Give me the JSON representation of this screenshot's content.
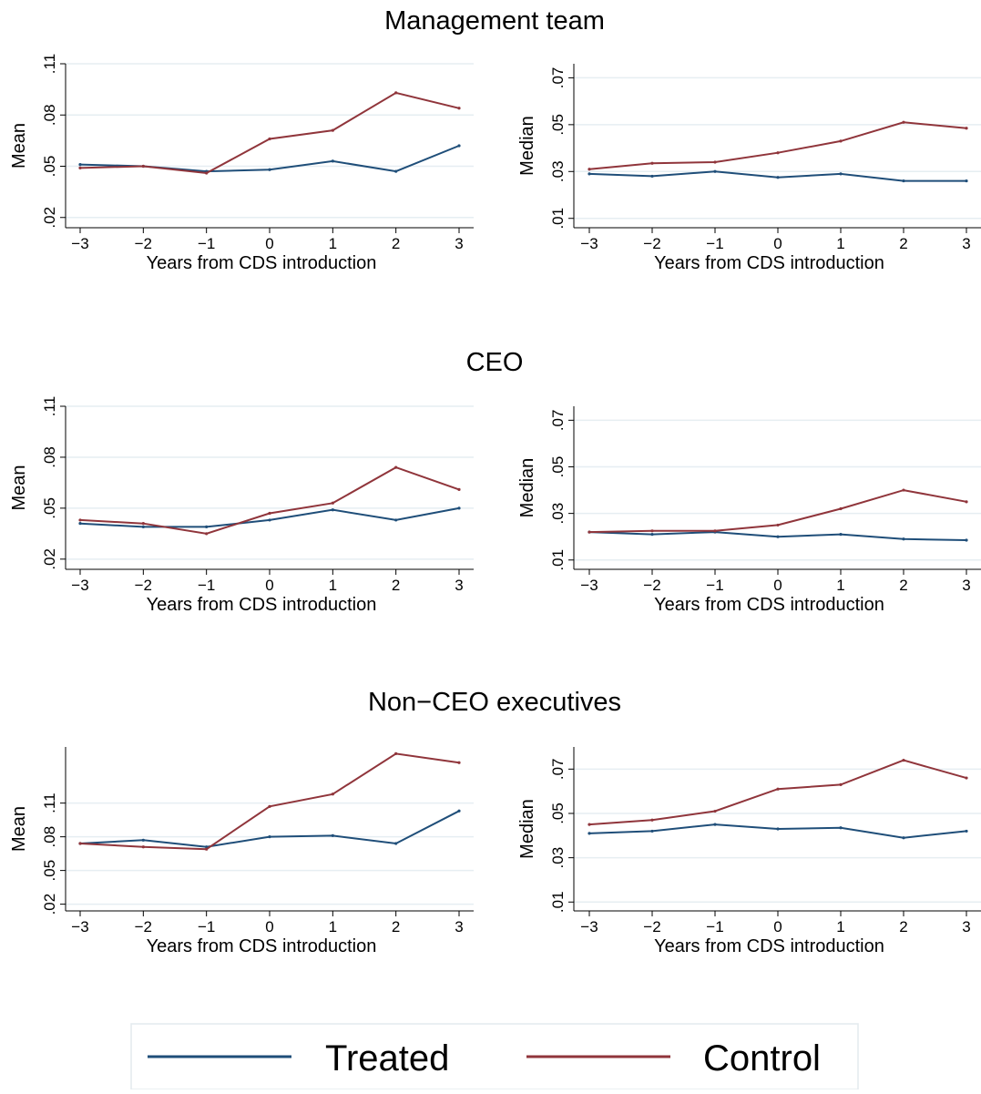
{
  "colors": {
    "treated": "#1f4e79",
    "control": "#90353b"
  },
  "legend": {
    "placement": "bottom-center",
    "items": [
      {
        "label": "Treated",
        "color": "#1f4e79"
      },
      {
        "label": "Control",
        "color": "#90353b"
      }
    ]
  },
  "sections": [
    {
      "title": "Management team"
    },
    {
      "title": "CEO"
    },
    {
      "title": "Non−CEO executives"
    }
  ],
  "chart_data": [
    {
      "type": "line",
      "section": "Management team",
      "xlabel": "Years from CDS introduction",
      "ylabel": "Mean",
      "x": [
        -3,
        -2,
        -1,
        0,
        1,
        2,
        3
      ],
      "xticks": [
        -3,
        -2,
        -1,
        0,
        1,
        2,
        3
      ],
      "xtick_labels": [
        "−3",
        "−2",
        "−1",
        "0",
        "1",
        "2",
        "3"
      ],
      "ylim": [
        0.014,
        0.11
      ],
      "yticks": [
        0.02,
        0.05,
        0.08,
        0.11
      ],
      "ytick_labels": [
        ".02",
        ".05",
        ".08",
        ".11"
      ],
      "grid": true,
      "series": [
        {
          "name": "Treated",
          "values": [
            0.051,
            0.05,
            0.047,
            0.048,
            0.053,
            0.047,
            0.062
          ]
        },
        {
          "name": "Control",
          "values": [
            0.049,
            0.05,
            0.046,
            0.066,
            0.071,
            0.093,
            0.084
          ]
        }
      ]
    },
    {
      "type": "line",
      "section": "Management team",
      "xlabel": "Years from CDS introduction",
      "ylabel": "Median",
      "x": [
        -3,
        -2,
        -1,
        0,
        1,
        2,
        3
      ],
      "xticks": [
        -3,
        -2,
        -1,
        0,
        1,
        2,
        3
      ],
      "xtick_labels": [
        "−3",
        "−2",
        "−1",
        "0",
        "1",
        "2",
        "3"
      ],
      "ylim": [
        0.006,
        0.076
      ],
      "yticks": [
        0.01,
        0.03,
        0.05,
        0.07
      ],
      "ytick_labels": [
        ".01",
        ".03",
        ".05",
        ".07"
      ],
      "grid": true,
      "series": [
        {
          "name": "Treated",
          "values": [
            0.029,
            0.028,
            0.03,
            0.0275,
            0.029,
            0.026,
            0.026
          ]
        },
        {
          "name": "Control",
          "values": [
            0.031,
            0.0335,
            0.034,
            0.038,
            0.043,
            0.051,
            0.0485
          ]
        }
      ]
    },
    {
      "type": "line",
      "section": "CEO",
      "xlabel": "Years from CDS introduction",
      "ylabel": "Mean",
      "x": [
        -3,
        -2,
        -1,
        0,
        1,
        2,
        3
      ],
      "xticks": [
        -3,
        -2,
        -1,
        0,
        1,
        2,
        3
      ],
      "xtick_labels": [
        "−3",
        "−2",
        "−1",
        "0",
        "1",
        "2",
        "3"
      ],
      "ylim": [
        0.014,
        0.11
      ],
      "yticks": [
        0.02,
        0.05,
        0.08,
        0.11
      ],
      "ytick_labels": [
        ".02",
        ".05",
        ".08",
        ".11"
      ],
      "grid": true,
      "series": [
        {
          "name": "Treated",
          "values": [
            0.041,
            0.039,
            0.039,
            0.043,
            0.049,
            0.043,
            0.05
          ]
        },
        {
          "name": "Control",
          "values": [
            0.043,
            0.041,
            0.035,
            0.047,
            0.053,
            0.074,
            0.061
          ]
        }
      ]
    },
    {
      "type": "line",
      "section": "CEO",
      "xlabel": "Years from CDS introduction",
      "ylabel": "Median",
      "x": [
        -3,
        -2,
        -1,
        0,
        1,
        2,
        3
      ],
      "xticks": [
        -3,
        -2,
        -1,
        0,
        1,
        2,
        3
      ],
      "xtick_labels": [
        "−3",
        "−2",
        "−1",
        "0",
        "1",
        "2",
        "3"
      ],
      "ylim": [
        0.006,
        0.076
      ],
      "yticks": [
        0.01,
        0.03,
        0.05,
        0.07
      ],
      "ytick_labels": [
        ".01",
        ".03",
        ".05",
        ".07"
      ],
      "grid": true,
      "series": [
        {
          "name": "Treated",
          "values": [
            0.022,
            0.021,
            0.022,
            0.02,
            0.021,
            0.019,
            0.0185
          ]
        },
        {
          "name": "Control",
          "values": [
            0.022,
            0.0225,
            0.0225,
            0.025,
            0.032,
            0.04,
            0.035
          ]
        }
      ]
    },
    {
      "type": "line",
      "section": "Non−CEO executives",
      "xlabel": "Years from CDS introduction",
      "ylabel": "Mean",
      "x": [
        -3,
        -2,
        -1,
        0,
        1,
        2,
        3
      ],
      "xticks": [
        -3,
        -2,
        -1,
        0,
        1,
        2,
        3
      ],
      "xtick_labels": [
        "−3",
        "−2",
        "−1",
        "0",
        "1",
        "2",
        "3"
      ],
      "ylim": [
        0.014,
        0.16
      ],
      "yticks": [
        0.02,
        0.05,
        0.08,
        0.11
      ],
      "ytick_labels": [
        ".02",
        ".05",
        ".08",
        ".11"
      ],
      "grid": true,
      "series": [
        {
          "name": "Treated",
          "values": [
            0.074,
            0.077,
            0.071,
            0.08,
            0.081,
            0.074,
            0.103
          ]
        },
        {
          "name": "Control",
          "values": [
            0.074,
            0.071,
            0.069,
            0.107,
            0.118,
            0.154,
            0.146
          ]
        }
      ]
    },
    {
      "type": "line",
      "section": "Non−CEO executives",
      "xlabel": "Years from CDS introduction",
      "ylabel": "Median",
      "x": [
        -3,
        -2,
        -1,
        0,
        1,
        2,
        3
      ],
      "xticks": [
        -3,
        -2,
        -1,
        0,
        1,
        2,
        3
      ],
      "xtick_labels": [
        "−3",
        "−2",
        "−1",
        "0",
        "1",
        "2",
        "3"
      ],
      "ylim": [
        0.006,
        0.08
      ],
      "yticks": [
        0.01,
        0.03,
        0.05,
        0.07
      ],
      "ytick_labels": [
        ".01",
        ".03",
        ".05",
        ".07"
      ],
      "grid": true,
      "series": [
        {
          "name": "Treated",
          "values": [
            0.041,
            0.042,
            0.045,
            0.043,
            0.0435,
            0.039,
            0.042
          ]
        },
        {
          "name": "Control",
          "values": [
            0.045,
            0.047,
            0.051,
            0.061,
            0.063,
            0.074,
            0.066
          ]
        }
      ]
    }
  ]
}
